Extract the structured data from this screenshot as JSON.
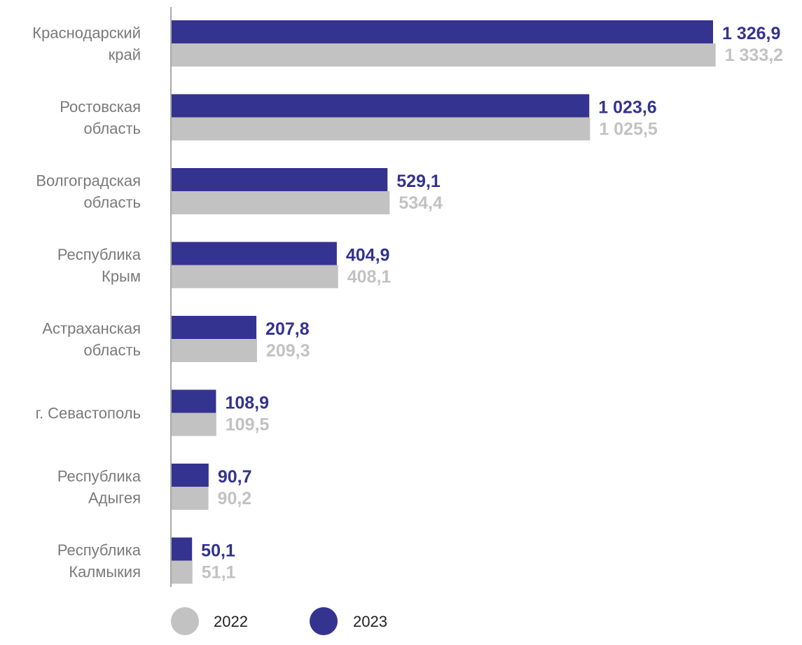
{
  "chart_data": {
    "type": "bar",
    "orientation": "horizontal",
    "categories": [
      [
        "Краснодарский",
        "край"
      ],
      [
        "Ростовская",
        "область"
      ],
      [
        "Волгоградская",
        "область"
      ],
      [
        "Республика",
        "Крым"
      ],
      [
        "Астраханская",
        "область"
      ],
      [
        "г. Севастополь"
      ],
      [
        "Республика",
        "Адыгея"
      ],
      [
        "Республика",
        "Калмыкия"
      ]
    ],
    "series": [
      {
        "name": "2023",
        "color": "#34338f",
        "values": [
          1326.9,
          1023.6,
          529.1,
          404.9,
          207.8,
          108.9,
          90.7,
          50.1
        ],
        "labels": [
          "1 326,9",
          "1 023,6",
          "529,1",
          "404,9",
          "207,8",
          "108,9",
          "90,7",
          "50,1"
        ]
      },
      {
        "name": "2022",
        "color": "#c2c2c2",
        "values": [
          1333.2,
          1025.5,
          534.4,
          408.1,
          209.3,
          109.5,
          90.2,
          51.1
        ],
        "labels": [
          "1 333,2",
          "1 025,5",
          "534,4",
          "408,1",
          "209,3",
          "109,5",
          "90,2",
          "51,1"
        ]
      }
    ],
    "legend": {
      "position": "bottom",
      "items": [
        {
          "label": "2022",
          "color": "#c2c2c2"
        },
        {
          "label": "2023",
          "color": "#34338f"
        }
      ]
    },
    "grid": false
  }
}
